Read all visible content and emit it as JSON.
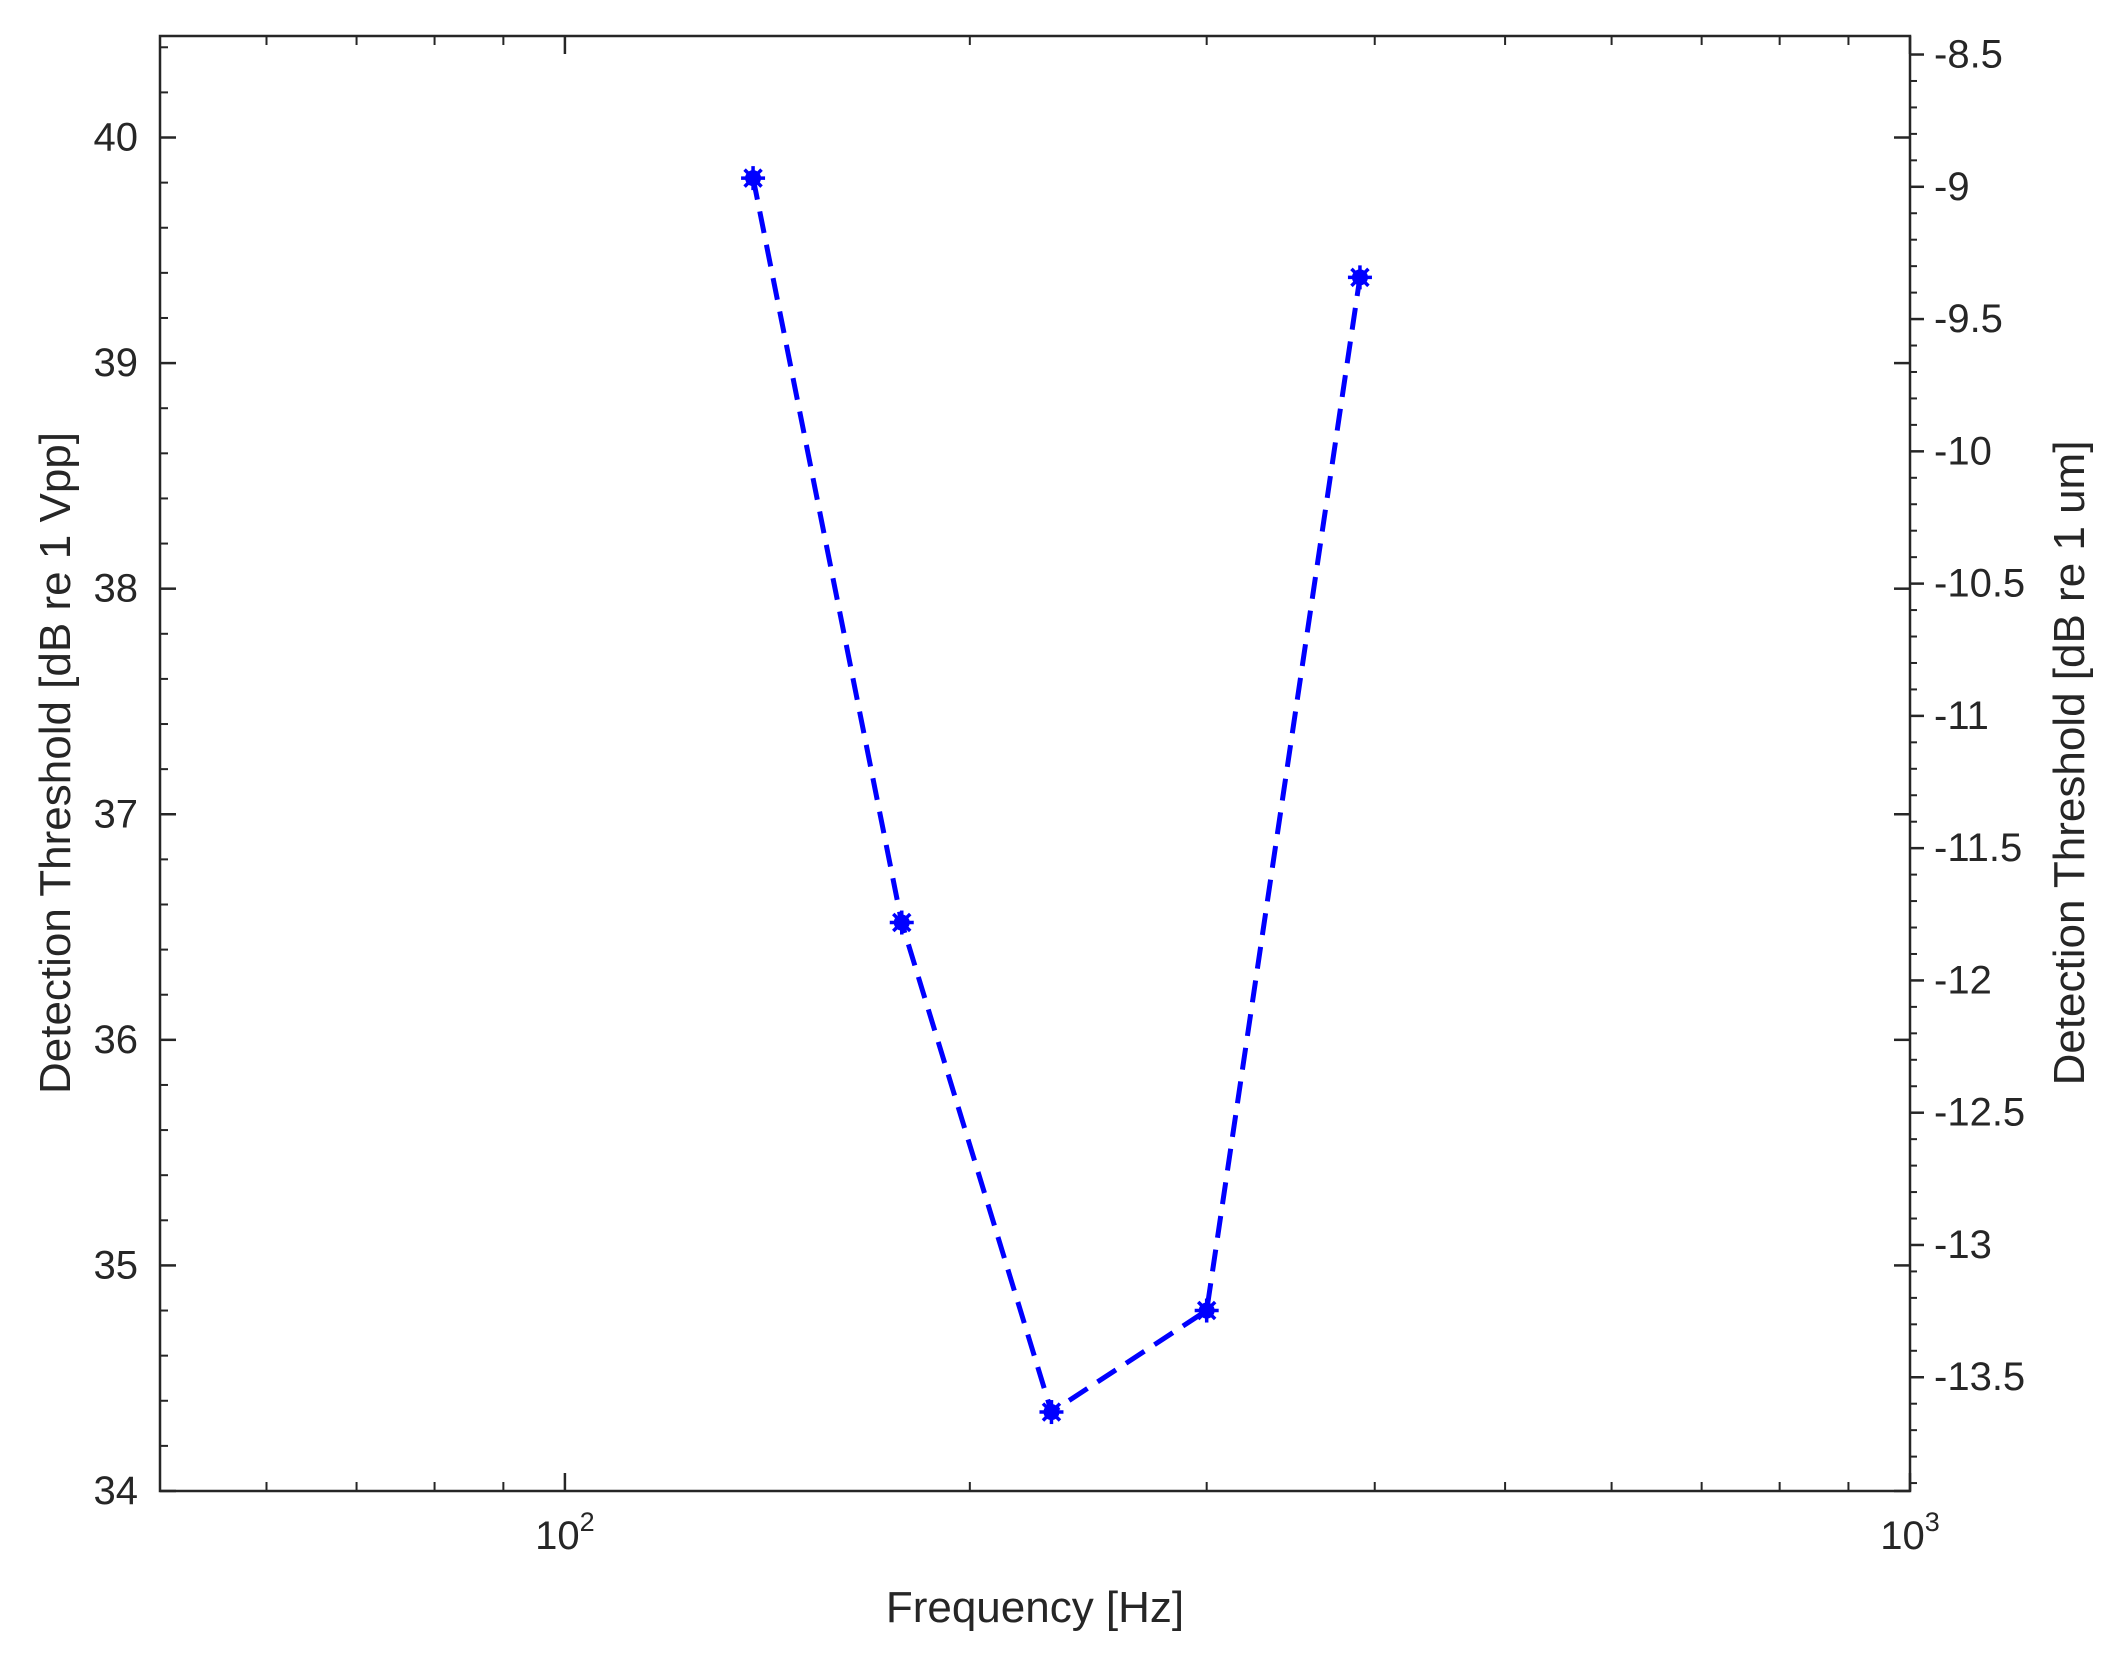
{
  "chart_data": {
    "type": "line",
    "xscale": "log",
    "xlim": [
      50,
      1000
    ],
    "x_ticks": [
      {
        "value": 100,
        "base": "10",
        "exp": "2"
      },
      {
        "value": 1000,
        "base": "10",
        "exp": "3"
      }
    ],
    "xlabel": "Frequency [Hz]",
    "ylabel_left": "Detection Threshold [dB re 1 Vpp]",
    "ylabel_right": "Detection Threshold [dB re 1 um]",
    "ylim_left": [
      34,
      40.45
    ],
    "ylim_right": [
      -13.93,
      -8.43
    ],
    "yticks_left": [
      "34",
      "35",
      "36",
      "37",
      "38",
      "39",
      "40"
    ],
    "yticks_right": [
      "-8.5",
      "-9",
      "-9.5",
      "-10",
      "-10.5",
      "-11",
      "-11.5",
      "-12",
      "-12.5",
      "-13",
      "-13.5"
    ],
    "grid": false,
    "series": [
      {
        "color": "#0000ff",
        "line_style": "dashed",
        "marker": "asterisk",
        "x": [
          138,
          178,
          230,
          300,
          390
        ],
        "y": [
          39.82,
          36.52,
          34.35,
          34.8,
          39.38
        ]
      }
    ]
  }
}
